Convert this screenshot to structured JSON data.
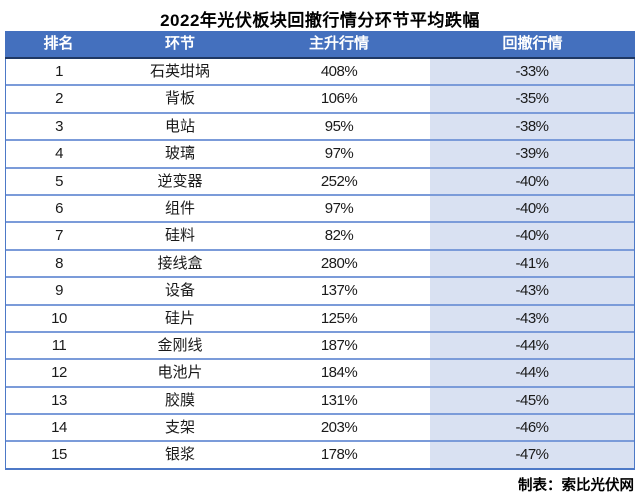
{
  "page": {
    "title": "2022年光伏板块回撤行情分环节平均跌幅",
    "credit": "制表：索比光伏网"
  },
  "colors": {
    "header_bg": "#4470BE",
    "header_text": "#FFFFFF",
    "header_bottom_border": "#1F3864",
    "row_border": "#7B9BD9",
    "outer_border": "#4D79C7",
    "drawdown_col_bg": "#D9E1F2",
    "body_text": "#1A1A1A"
  },
  "chart_data": {
    "type": "table",
    "title": "2022年光伏板块回撤行情分环节平均跌幅",
    "columns": [
      "排名",
      "环节",
      "主升行情",
      "回撤行情"
    ],
    "rows": [
      [
        "1",
        "石英坩埚",
        "408%",
        "-33%"
      ],
      [
        "2",
        "背板",
        "106%",
        "-35%"
      ],
      [
        "3",
        "电站",
        "95%",
        "-38%"
      ],
      [
        "4",
        "玻璃",
        "97%",
        "-39%"
      ],
      [
        "5",
        "逆变器",
        "252%",
        "-40%"
      ],
      [
        "6",
        "组件",
        "97%",
        "-40%"
      ],
      [
        "7",
        "硅料",
        "82%",
        "-40%"
      ],
      [
        "8",
        "接线盒",
        "280%",
        "-41%"
      ],
      [
        "9",
        "设备",
        "137%",
        "-43%"
      ],
      [
        "10",
        "硅片",
        "125%",
        "-43%"
      ],
      [
        "11",
        "金刚线",
        "187%",
        "-44%"
      ],
      [
        "12",
        "电池片",
        "184%",
        "-44%"
      ],
      [
        "13",
        "胶膜",
        "131%",
        "-45%"
      ],
      [
        "14",
        "支架",
        "203%",
        "-46%"
      ],
      [
        "15",
        "银浆",
        "178%",
        "-47%"
      ]
    ]
  }
}
